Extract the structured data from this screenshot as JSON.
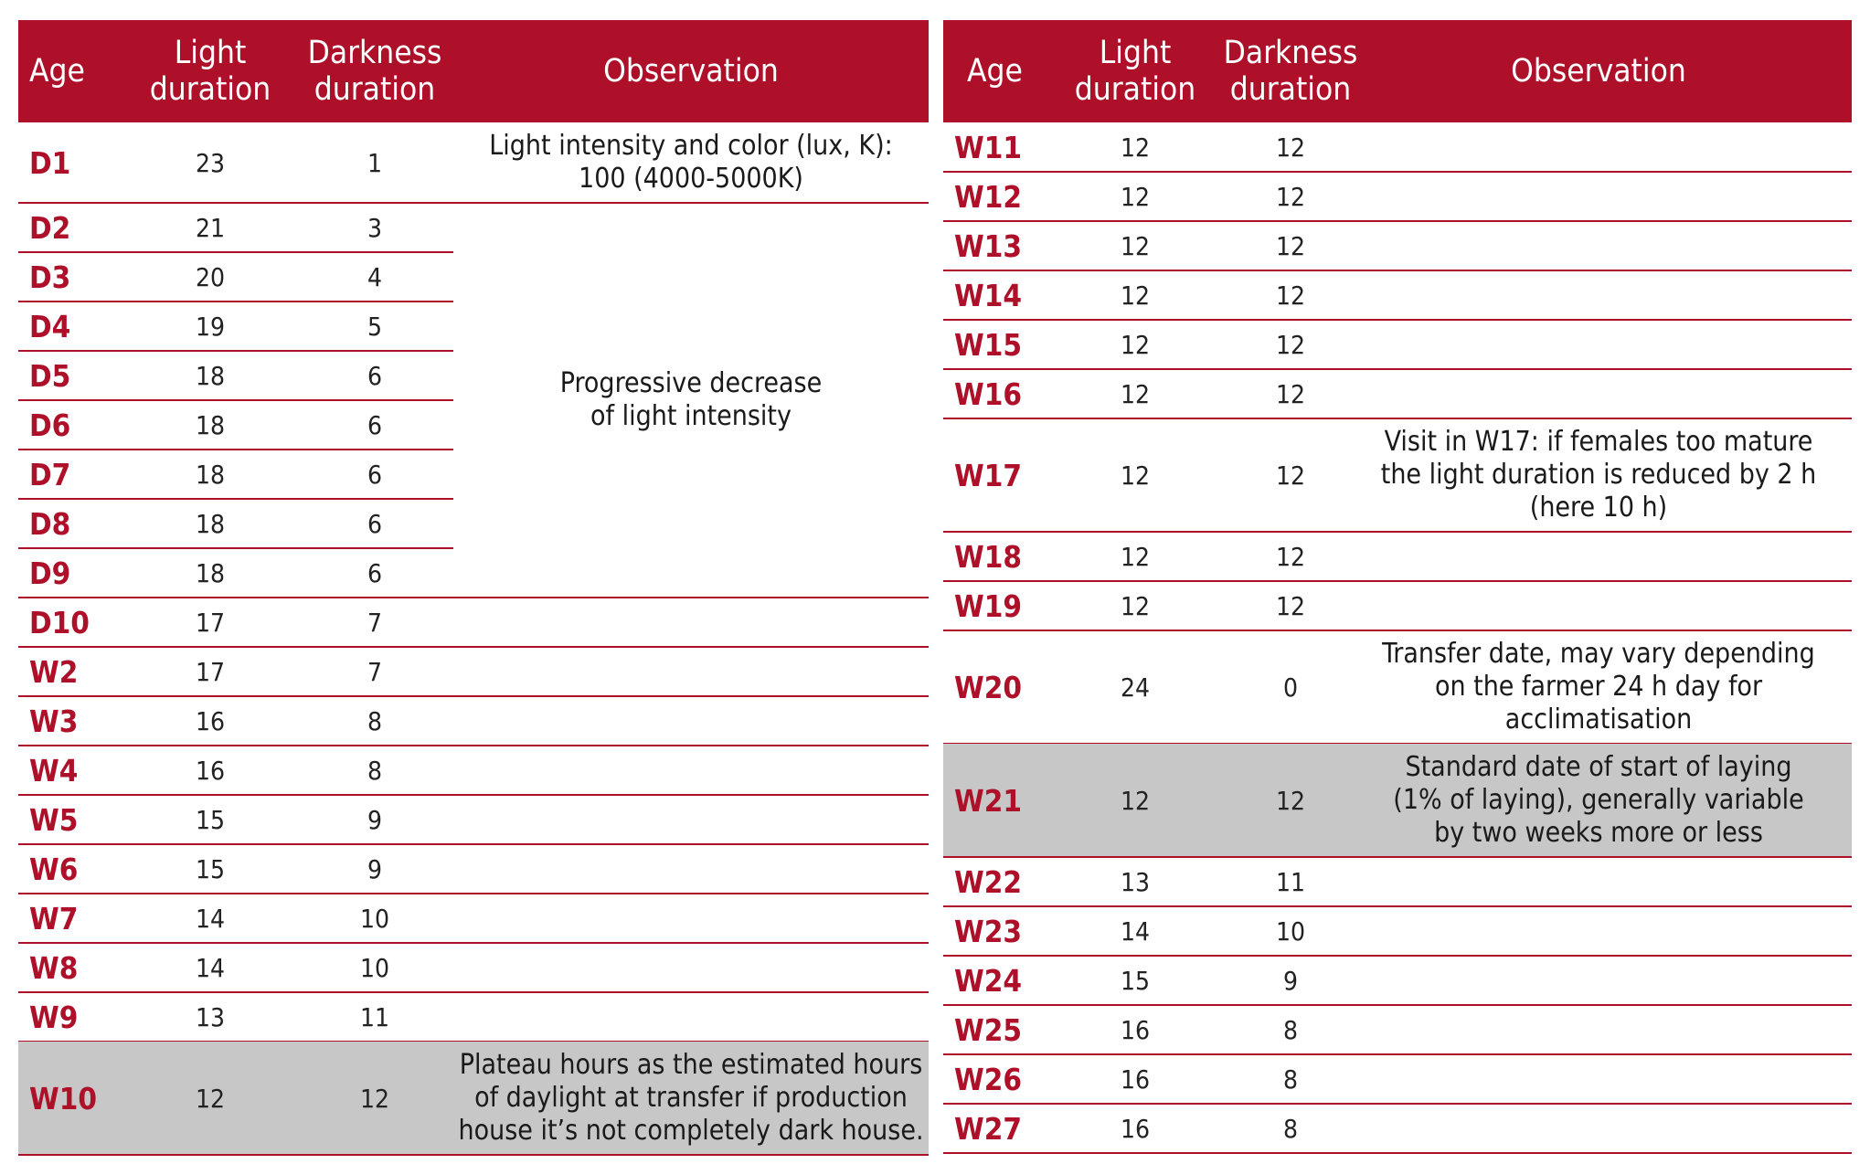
{
  "colors": {
    "header_bg": "#ae1029",
    "age_text": "#ae1029",
    "rule": "#ae1029",
    "highlight_bg": "#c7c7c7"
  },
  "headers": {
    "age": "Age",
    "light": [
      "Light",
      "duration"
    ],
    "darkness": [
      "Darkness",
      "duration"
    ],
    "observation": "Observation"
  },
  "left_rows": [
    {
      "age": "D1",
      "light": "23",
      "dark": "1"
    },
    {
      "age": "D2",
      "light": "21",
      "dark": "3"
    },
    {
      "age": "D3",
      "light": "20",
      "dark": "4"
    },
    {
      "age": "D4",
      "light": "19",
      "dark": "5"
    },
    {
      "age": "D5",
      "light": "18",
      "dark": "6"
    },
    {
      "age": "D6",
      "light": "18",
      "dark": "6"
    },
    {
      "age": "D7",
      "light": "18",
      "dark": "6"
    },
    {
      "age": "D8",
      "light": "18",
      "dark": "6"
    },
    {
      "age": "D9",
      "light": "18",
      "dark": "6"
    },
    {
      "age": "D10",
      "light": "17",
      "dark": "7"
    },
    {
      "age": "W2",
      "light": "17",
      "dark": "7"
    },
    {
      "age": "W3",
      "light": "16",
      "dark": "8"
    },
    {
      "age": "W4",
      "light": "16",
      "dark": "8"
    },
    {
      "age": "W5",
      "light": "15",
      "dark": "9"
    },
    {
      "age": "W6",
      "light": "15",
      "dark": "9"
    },
    {
      "age": "W7",
      "light": "14",
      "dark": "10"
    },
    {
      "age": "W8",
      "light": "14",
      "dark": "10"
    },
    {
      "age": "W9",
      "light": "13",
      "dark": "11"
    },
    {
      "age": "W10",
      "light": "12",
      "dark": "12",
      "highlight": true
    }
  ],
  "left_observations": {
    "d1": [
      "Light intensity and color (lux, K):",
      "100 (4000-5000K)"
    ],
    "progressive": [
      "Progressive decrease",
      "of light intensity"
    ],
    "w10": [
      "Plateau hours as the estimated hours",
      "of daylight at transfer if production",
      "house it’s not completely dark house."
    ]
  },
  "right_rows": [
    {
      "age": "W11",
      "light": "12",
      "dark": "12"
    },
    {
      "age": "W12",
      "light": "12",
      "dark": "12"
    },
    {
      "age": "W13",
      "light": "12",
      "dark": "12"
    },
    {
      "age": "W14",
      "light": "12",
      "dark": "12"
    },
    {
      "age": "W15",
      "light": "12",
      "dark": "12"
    },
    {
      "age": "W16",
      "light": "12",
      "dark": "12"
    },
    {
      "age": "W17",
      "light": "12",
      "dark": "12"
    },
    {
      "age": "W18",
      "light": "12",
      "dark": "12"
    },
    {
      "age": "W19",
      "light": "12",
      "dark": "12"
    },
    {
      "age": "W20",
      "light": "24",
      "dark": "0"
    },
    {
      "age": "W21",
      "light": "12",
      "dark": "12",
      "highlight": true
    },
    {
      "age": "W22",
      "light": "13",
      "dark": "11"
    },
    {
      "age": "W23",
      "light": "14",
      "dark": "10"
    },
    {
      "age": "W24",
      "light": "15",
      "dark": "9"
    },
    {
      "age": "W25",
      "light": "16",
      "dark": "8"
    },
    {
      "age": "W26",
      "light": "16",
      "dark": "8"
    },
    {
      "age": "W27",
      "light": "16",
      "dark": "8"
    }
  ],
  "right_observations": {
    "w17": [
      "Visit in W17: if females too mature",
      "the light duration is reduced by 2 h",
      "(here 10 h)"
    ],
    "w20": [
      "Transfer date, may vary depending",
      "on the farmer 24 h day for",
      "acclimatisation"
    ],
    "w21": [
      "Standard date of start of laying",
      "(1% of laying), generally variable",
      "by two weeks more or less"
    ]
  }
}
